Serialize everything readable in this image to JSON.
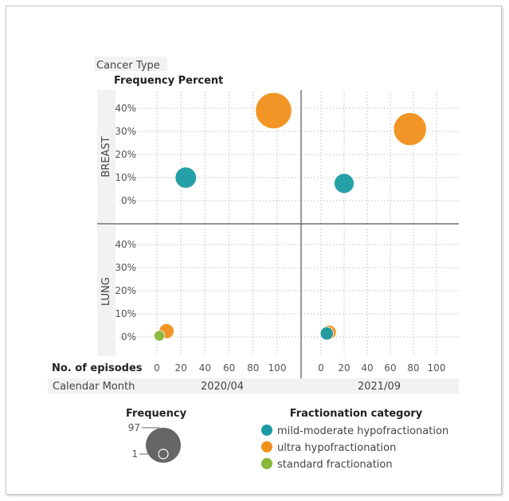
{
  "colors": {
    "mild-moderate hypofractionation": "#1a9ba3",
    "ultra hypofractionation": "#f0901a",
    "standard fractionation": "#8ab73a",
    "size_legend": "#666666",
    "band": "#f2f2f2"
  },
  "chart_data": {
    "type": "scatter",
    "subtype": "bubble-panel",
    "row_var_label": "Cancer Type",
    "y_title": "Frequency Percent",
    "x_title": "No. of episodes",
    "col_var_label": "Calendar Month",
    "columns": [
      "2020/04",
      "2021/09"
    ],
    "rows": [
      "BREAST",
      "LUNG"
    ],
    "x_ticks": [
      0,
      20,
      40,
      60,
      80,
      100
    ],
    "y_ticks": [
      "0%",
      "10%",
      "20%",
      "30%",
      "40%"
    ],
    "xlim": [
      -5,
      110
    ],
    "ylim": [
      -3,
      45
    ],
    "series_names": [
      "mild-moderate hypofractionation",
      "ultra hypofractionation",
      "standard fractionation"
    ],
    "points": [
      {
        "row": "BREAST",
        "col": "2020/04",
        "series": "mild-moderate hypofractionation",
        "x": 24,
        "y": 10
      },
      {
        "row": "BREAST",
        "col": "2020/04",
        "series": "ultra hypofractionation",
        "x": 97,
        "y": 39
      },
      {
        "row": "BREAST",
        "col": "2021/09",
        "series": "mild-moderate hypofractionation",
        "x": 20,
        "y": 7.5
      },
      {
        "row": "BREAST",
        "col": "2021/09",
        "series": "ultra hypofractionation",
        "x": 77,
        "y": 31
      },
      {
        "row": "LUNG",
        "col": "2020/04",
        "series": "ultra hypofractionation",
        "x": 8,
        "y": 2.5
      },
      {
        "row": "LUNG",
        "col": "2020/04",
        "series": "standard fractionation",
        "x": 2,
        "y": 0.5
      },
      {
        "row": "LUNG",
        "col": "2021/09",
        "series": "ultra hypofractionation",
        "x": 7,
        "y": 2
      },
      {
        "row": "LUNG",
        "col": "2021/09",
        "series": "mild-moderate hypofractionation",
        "x": 5,
        "y": 1.5
      }
    ],
    "size_legend": {
      "title": "Frequency",
      "max": 97,
      "min": 1
    },
    "color_legend": {
      "title": "Fractionation category"
    },
    "grid": true
  }
}
